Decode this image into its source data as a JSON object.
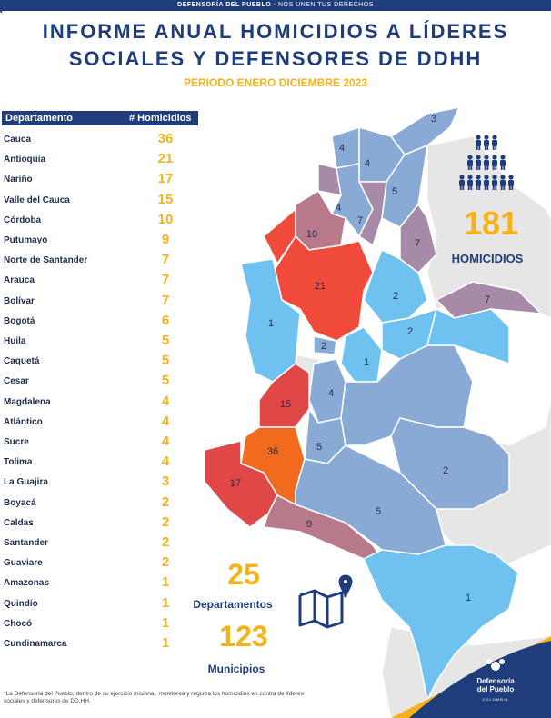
{
  "header": {
    "tagline_strong": "DEFENSORÍA DEL PUEBLO",
    "tagline_sep": " - ",
    "tagline_rest": "NOS UNEN TUS DERECHOS"
  },
  "title_line1": "INFORME ANUAL HOMICIDIOS A LÍDERES",
  "title_line2": "SOCIALES Y DEFENSORES DE DDHH",
  "period": "PERIODO ENERO DICIEMBRE 2023",
  "table": {
    "col_department": "Departamento",
    "col_homicides": "# Homicidios"
  },
  "chart_data": {
    "type": "table",
    "columns": [
      "Departamento",
      "# Homicidios"
    ],
    "rows": [
      {
        "department": "Cauca",
        "homicides": 36
      },
      {
        "department": "Antioquia",
        "homicides": 21
      },
      {
        "department": "Nariño",
        "homicides": 17
      },
      {
        "department": "Valle del Cauca",
        "homicides": 15
      },
      {
        "department": "Córdoba",
        "homicides": 10
      },
      {
        "department": "Putumayo",
        "homicides": 9
      },
      {
        "department": "Norte de Santander",
        "homicides": 7
      },
      {
        "department": "Arauca",
        "homicides": 7
      },
      {
        "department": "Bolívar",
        "homicides": 7
      },
      {
        "department": "Bogotá",
        "homicides": 6
      },
      {
        "department": "Huila",
        "homicides": 5
      },
      {
        "department": "Caquetá",
        "homicides": 5
      },
      {
        "department": "Cesar",
        "homicides": 5
      },
      {
        "department": "Magdalena",
        "homicides": 4
      },
      {
        "department": "Atlántico",
        "homicides": 4
      },
      {
        "department": "Sucre",
        "homicides": 4
      },
      {
        "department": "Tolima",
        "homicides": 4
      },
      {
        "department": "La Guajira",
        "homicides": 3
      },
      {
        "department": "Boyacá",
        "homicides": 2
      },
      {
        "department": "Caldas",
        "homicides": 2
      },
      {
        "department": "Santander",
        "homicides": 2
      },
      {
        "department": "Guaviare",
        "homicides": 2
      },
      {
        "department": "Amazonas",
        "homicides": 1
      },
      {
        "department": "Quindío",
        "homicides": 1
      },
      {
        "department": "Chocó",
        "homicides": 1
      },
      {
        "department": "Cundinamarca",
        "homicides": 1
      }
    ],
    "map_labels": [
      "3",
      "4",
      "4",
      "5",
      "4",
      "7",
      "10",
      "7",
      "21",
      "2",
      "7",
      "1",
      "2",
      "2",
      "1",
      "4",
      "15",
      "36",
      "5",
      "2",
      "17",
      "5",
      "9",
      "1"
    ]
  },
  "totals": {
    "homicides_value": "181",
    "homicides_label": "HOMICIDIOS",
    "departments_value": "25",
    "departments_label": "Departamentos",
    "municipalities_value": "123",
    "municipalities_label": "Municipios"
  },
  "footnote": "*La Defensoría del Pueblo, dentro de su ejercicio misional, monitorea y registra los homicidios en contra de  líderes sociales y defensores de DD.HH.",
  "logo": {
    "name_line1": "Defensoría",
    "name_line2": "del Pueblo",
    "country": "COLOMBIA"
  },
  "colors": {
    "navy": "#1f3d7a",
    "gold": "#f5b21a",
    "light_blue": "#6fc2f0",
    "steel_blue": "#8aaad6",
    "mauve": "#a68aa8",
    "rose": "#b87a8a",
    "red_orange": "#f04b3a",
    "red": "#e04848",
    "orange": "#f26a1e",
    "gray_land": "#e3e3e3"
  }
}
